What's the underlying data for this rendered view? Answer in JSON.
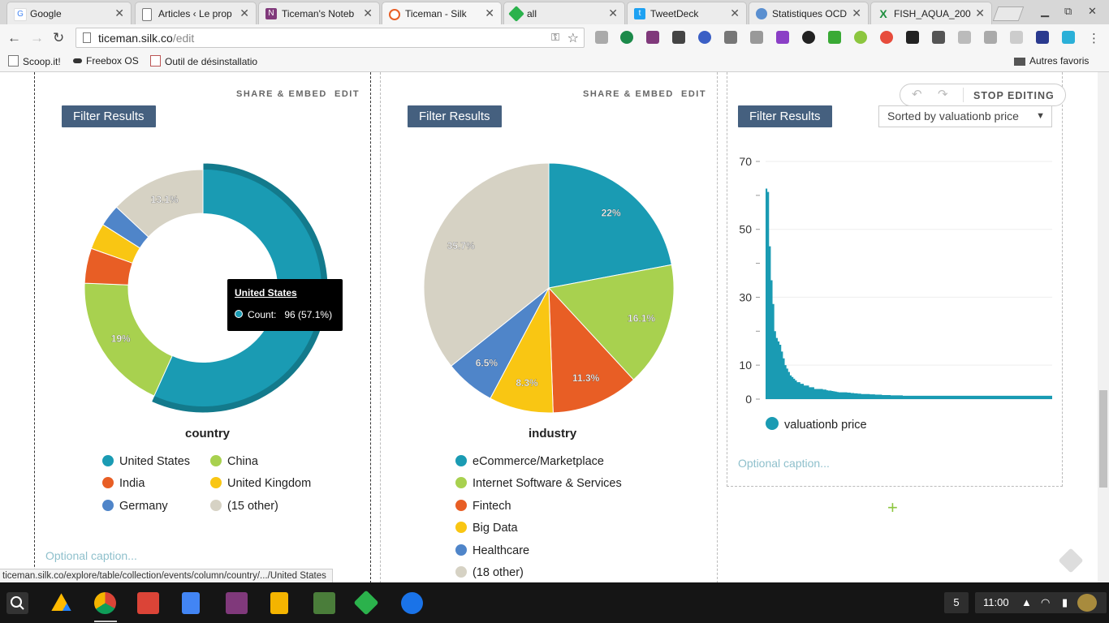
{
  "browser": {
    "tabs": [
      {
        "title": "Google",
        "favicon": "google-g-icon",
        "active": false
      },
      {
        "title": "Articles ‹ Le prop",
        "favicon": "page-icon",
        "active": false
      },
      {
        "title": "Ticeman's Noteb",
        "favicon": "onenote-icon",
        "active": false
      },
      {
        "title": "Ticeman - Silk",
        "favicon": "silk-icon",
        "active": true
      },
      {
        "title": "all",
        "favicon": "feedly-icon",
        "active": false
      },
      {
        "title": "TweetDeck",
        "favicon": "twitter-icon",
        "active": false
      },
      {
        "title": "Statistiques OCD",
        "favicon": "globe-icon",
        "active": false
      },
      {
        "title": "FISH_AQUA_200",
        "favicon": "sheets-x-icon",
        "active": false
      }
    ],
    "url_host": "ticeman.silk.co",
    "url_path": "/edit",
    "bookmarks": [
      {
        "label": "Scoop.it!",
        "icon": "page-icon"
      },
      {
        "label": "Freebox OS",
        "icon": "freebox-icon"
      },
      {
        "label": "Outil de désinstallatio",
        "icon": "java-icon"
      }
    ],
    "other_bookmarks": "Autres favoris",
    "status_url": "ticeman.silk.co/explore/table/collection/events/column/country/.../United States"
  },
  "panels": {
    "share_label": "SHARE & EMBED",
    "edit_label": "EDIT",
    "filter_label": "Filter Results",
    "caption_placeholder": "Optional caption..."
  },
  "edit_bar": {
    "stop_label": "STOP EDITING"
  },
  "sort_select": {
    "value": "Sorted by valuationb price"
  },
  "tooltip": {
    "title": "United States",
    "label": "Count:",
    "value": "96 (57.1%)"
  },
  "colors": {
    "teal": "#1a9bb3",
    "green": "#a8d14f",
    "orange": "#e85e25",
    "yellow": "#f9c613",
    "blue": "#4f85c9",
    "beige": "#d6d2c4",
    "filter_bg": "#45607f"
  },
  "chart_data": [
    {
      "type": "pie",
      "donut": true,
      "title": "country",
      "slices": [
        {
          "label": "United States",
          "value": 57.1,
          "color": "#1a9bb3",
          "data_label": ""
        },
        {
          "label": "China",
          "value": 19.0,
          "color": "#a8d14f",
          "data_label": "19%"
        },
        {
          "label": "India",
          "value": 4.8,
          "color": "#e85e25",
          "data_label": ""
        },
        {
          "label": "United Kingdom",
          "value": 3.6,
          "color": "#f9c613",
          "data_label": ""
        },
        {
          "label": "Germany",
          "value": 3.0,
          "color": "#4f85c9",
          "data_label": ""
        },
        {
          "label": "(15 other)",
          "value": 13.1,
          "color": "#d6d2c4",
          "data_label": "13.1%"
        }
      ],
      "highlighted": "United States"
    },
    {
      "type": "pie",
      "donut": false,
      "title": "industry",
      "slices": [
        {
          "label": "eCommerce/Marketplace",
          "value": 22.0,
          "color": "#1a9bb3",
          "data_label": "22%"
        },
        {
          "label": "Internet Software & Services",
          "value": 16.1,
          "color": "#a8d14f",
          "data_label": "16.1%"
        },
        {
          "label": "Fintech",
          "value": 11.3,
          "color": "#e85e25",
          "data_label": "11.3%"
        },
        {
          "label": "Big Data",
          "value": 8.3,
          "color": "#f9c613",
          "data_label": "8.3%"
        },
        {
          "label": "Healthcare",
          "value": 6.5,
          "color": "#4f85c9",
          "data_label": "6.5%"
        },
        {
          "label": "(18 other)",
          "value": 35.7,
          "color": "#d6d2c4",
          "data_label": "35.7%"
        }
      ]
    },
    {
      "type": "area",
      "title": "",
      "series": [
        {
          "name": "valuationb price",
          "color": "#1a9bb3"
        }
      ],
      "ylim": [
        0,
        70
      ],
      "yticks": [
        0,
        10,
        30,
        50,
        70
      ],
      "values": [
        62,
        61,
        45,
        35,
        28,
        20,
        18,
        17,
        16,
        14,
        12,
        10,
        9,
        8,
        7,
        6.5,
        6,
        5.5,
        5,
        5,
        4.5,
        4.5,
        4,
        4,
        4,
        3.5,
        3.5,
        3.5,
        3,
        3,
        3,
        3,
        3,
        2.8,
        2.8,
        2.6,
        2.5,
        2.5,
        2.4,
        2.3,
        2.2,
        2.1,
        2,
        2,
        2,
        2,
        2,
        1.9,
        1.9,
        1.8,
        1.8,
        1.7,
        1.7,
        1.6,
        1.6,
        1.5,
        1.5,
        1.5,
        1.5,
        1.5,
        1.4,
        1.4,
        1.4,
        1.3,
        1.3,
        1.3,
        1.3,
        1.2,
        1.2,
        1.2,
        1.2,
        1.2,
        1.1,
        1.1,
        1.1,
        1.1,
        1.1,
        1.1,
        1.1,
        1.0,
        1.0,
        1.0,
        1.0,
        1.0,
        1.0,
        1.0,
        1.0,
        1.0,
        1.0,
        1.0,
        1.0,
        1.0,
        1.0,
        1.0,
        1.0,
        1.0,
        1.0,
        1.0,
        1.0,
        1.0,
        1.0,
        1.0,
        1.0,
        1.0,
        1.0,
        1.0,
        1.0,
        1.0,
        1.0,
        1.0,
        1.0,
        1.0,
        1.0,
        1.0,
        1.0,
        1.0,
        1.0,
        1.0,
        1.0,
        1.0,
        1.0,
        1.0,
        1.0,
        1.0,
        1.0,
        1.0,
        1.0,
        1.0,
        1.0,
        1.0,
        1.0,
        1.0,
        1.0,
        1.0,
        1.0,
        1.0,
        1.0,
        1.0,
        1.0,
        1.0,
        1.0,
        1.0,
        1.0,
        1.0,
        1.0,
        1.0,
        1.0,
        1.0,
        1.0,
        1.0,
        1.0,
        1.0,
        1.0,
        1.0,
        1.0,
        1.0,
        1.0,
        1.0,
        1.0,
        1.0,
        1.0,
        1.0,
        1.0,
        1.0,
        1.0
      ]
    }
  ],
  "shelf": {
    "apps": [
      "search-icon",
      "drive-icon",
      "chrome-icon",
      "gmail-icon",
      "docs-icon",
      "onenote-icon",
      "slides-icon",
      "lucid-icon",
      "feedly-icon",
      "files-icon"
    ],
    "notifications": "5",
    "time": "11:00"
  }
}
